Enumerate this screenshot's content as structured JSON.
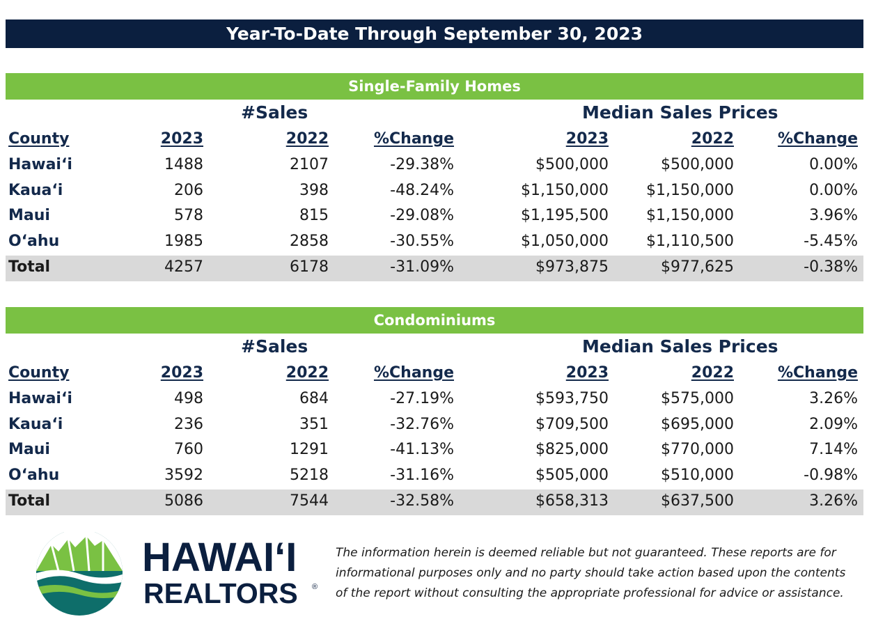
{
  "title": "Year-To-Date Through September 30, 2023",
  "sections": [
    {
      "heading": "Single-Family Homes",
      "group_sales": "#Sales",
      "group_prices": "Median Sales Prices",
      "columns": [
        "County",
        "2023",
        "2022",
        "%Change",
        "2023",
        "2022",
        "%Change"
      ],
      "rows": [
        [
          "Hawai‘i",
          "1488",
          "2107",
          "-29.38%",
          "$500,000",
          "$500,000",
          "0.00%"
        ],
        [
          "Kaua‘i",
          "206",
          "398",
          "-48.24%",
          "$1,150,000",
          "$1,150,000",
          "0.00%"
        ],
        [
          "Maui",
          "578",
          "815",
          "-29.08%",
          "$1,195,500",
          "$1,150,000",
          "3.96%"
        ],
        [
          "O‘ahu",
          "1985",
          "2858",
          "-30.55%",
          "$1,050,000",
          "$1,110,500",
          "-5.45%"
        ]
      ],
      "total": [
        "Total",
        "4257",
        "6178",
        "-31.09%",
        "$973,875",
        "$977,625",
        "-0.38%"
      ]
    },
    {
      "heading": "Condominiums",
      "group_sales": "#Sales",
      "group_prices": "Median Sales Prices",
      "columns": [
        "County",
        "2023",
        "2022",
        "%Change",
        "2023",
        "2022",
        "%Change"
      ],
      "rows": [
        [
          "Hawai‘i",
          "498",
          "684",
          "-27.19%",
          "$593,750",
          "$575,000",
          "3.26%"
        ],
        [
          "Kaua‘i",
          "236",
          "351",
          "-32.76%",
          "$709,500",
          "$695,000",
          "2.09%"
        ],
        [
          "Maui",
          "760",
          "1291",
          "-41.13%",
          "$825,000",
          "$770,000",
          "7.14%"
        ],
        [
          "O‘ahu",
          "3592",
          "5218",
          "-31.16%",
          "$505,000",
          "$510,000",
          "-0.98%"
        ]
      ],
      "total": [
        "Total",
        "5086",
        "7544",
        "-32.58%",
        "$658,313",
        "$637,500",
        "3.26%"
      ]
    }
  ],
  "logo": {
    "line1": "HAWAI‘I",
    "line2": "REALTORS",
    "mark": "®",
    "icon": "mountain-wave-logo-icon"
  },
  "disclaimer": "The information herein is deemed reliable but not guaranteed. These reports are for informational purposes only and no party should take action based upon the contents of the report without consulting the appropriate professional for advice or assistance.",
  "colors": {
    "navy": "#0b1f3f",
    "green": "#7ac143",
    "text_navy": "#13294b",
    "total_bg": "#d9d9d9"
  }
}
